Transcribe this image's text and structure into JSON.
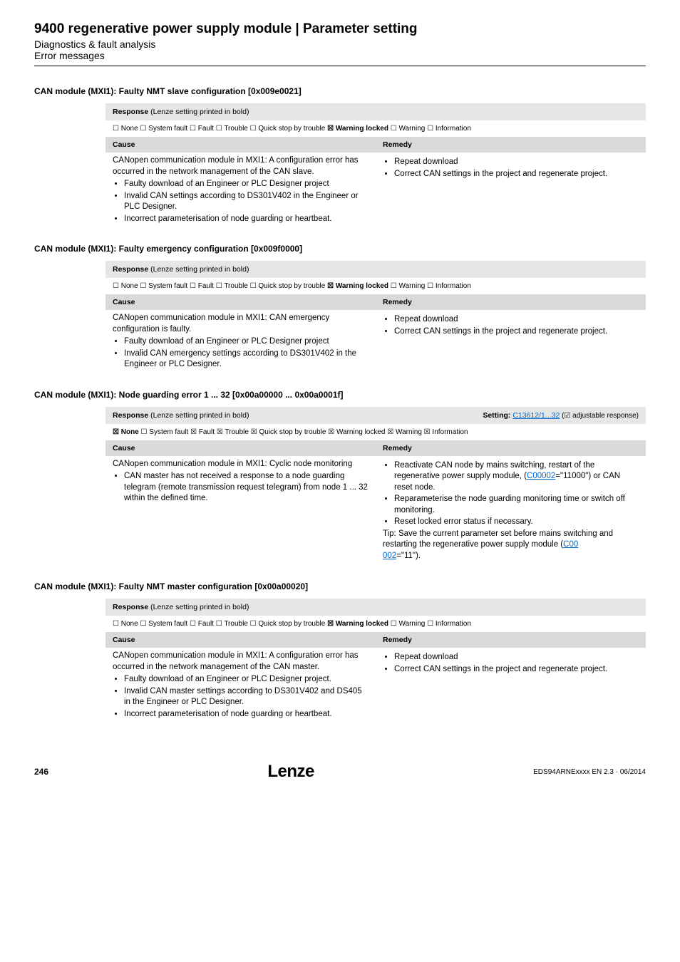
{
  "header": {
    "title": "9400 regenerative power supply module | Parameter setting",
    "subtitle1": "Diagnostics & fault analysis",
    "subtitle2": "Error messages"
  },
  "sections": [
    {
      "heading": "CAN module (MXI1): Faulty NMT slave configuration [0x009e0021]",
      "response_title": "Response",
      "response_note": " (Lenze setting printed in bold)",
      "setting_label": "",
      "setting_link": "",
      "adj_resp": "",
      "checks": {
        "none": {
          "label": "None",
          "checked": false,
          "bold": false
        },
        "system_fault": {
          "label": "System fault",
          "checked": false,
          "bold": false
        },
        "fault": {
          "label": "Fault",
          "checked": false,
          "bold": false
        },
        "trouble": {
          "label": "Trouble",
          "checked": false,
          "bold": false
        },
        "quick_stop": {
          "label": "Quick stop by trouble",
          "checked": false,
          "bold": false
        },
        "warning_locked": {
          "label": "Warning locked",
          "checked": true,
          "bold": true
        },
        "warning": {
          "label": "Warning",
          "checked": false,
          "bold": false
        },
        "information": {
          "label": "Information",
          "checked": false,
          "bold": false
        }
      },
      "cause_header": "Cause",
      "remedy_header": "Remedy",
      "cause_intro": "CANopen communication module in MXI1: A configuration error has occurred in the network management of the CAN slave.",
      "cause_bullets": [
        "Faulty download of an Engineer or PLC Designer project",
        "Invalid CAN settings according to DS301V402 in the Engineer or PLC Designer.",
        "Incorrect parameterisation of node guarding or heartbeat."
      ],
      "remedy_intro": "",
      "remedy_bullets": [
        "Repeat download",
        "Correct CAN settings in the project and regenerate project."
      ],
      "remedy_tip": ""
    },
    {
      "heading": "CAN module (MXI1): Faulty emergency configuration [0x009f0000]",
      "response_title": "Response",
      "response_note": " (Lenze setting printed in bold)",
      "setting_label": "",
      "setting_link": "",
      "adj_resp": "",
      "checks": {
        "none": {
          "label": "None",
          "checked": false,
          "bold": false
        },
        "system_fault": {
          "label": "System fault",
          "checked": false,
          "bold": false
        },
        "fault": {
          "label": "Fault",
          "checked": false,
          "bold": false
        },
        "trouble": {
          "label": "Trouble",
          "checked": false,
          "bold": false
        },
        "quick_stop": {
          "label": "Quick stop by trouble",
          "checked": false,
          "bold": false
        },
        "warning_locked": {
          "label": "Warning locked",
          "checked": true,
          "bold": true
        },
        "warning": {
          "label": "Warning",
          "checked": false,
          "bold": false
        },
        "information": {
          "label": "Information",
          "checked": false,
          "bold": false
        }
      },
      "cause_header": "Cause",
      "remedy_header": "Remedy",
      "cause_intro": "CANopen communication module in MXI1: CAN emergency configuration is faulty.",
      "cause_bullets": [
        "Faulty download of an Engineer or PLC Designer project",
        "Invalid CAN emergency settings according to DS301V402 in the Engineer or PLC Designer."
      ],
      "remedy_intro": "",
      "remedy_bullets": [
        "Repeat download",
        "Correct CAN settings in the project and regenerate project."
      ],
      "remedy_tip": ""
    },
    {
      "heading": "CAN module (MXI1): Node guarding error 1 ... 32 [0x00a00000 ... 0x00a0001f]",
      "response_title": "Response",
      "response_note": " (Lenze setting printed in bold)",
      "setting_label": "Setting: ",
      "setting_link": "C13612/1...32",
      "adj_resp": "   (☑ adjustable response)",
      "checks": {
        "none": {
          "label": "None",
          "checked": true,
          "bold": true
        },
        "system_fault": {
          "label": "System fault",
          "checked": false,
          "bold": false
        },
        "fault": {
          "label": "Fault",
          "checked": true,
          "bold": false
        },
        "trouble": {
          "label": "Trouble",
          "checked": true,
          "bold": false
        },
        "quick_stop": {
          "label": "Quick stop by trouble",
          "checked": true,
          "bold": false
        },
        "warning_locked": {
          "label": "Warning locked",
          "checked": true,
          "bold": false
        },
        "warning": {
          "label": "Warning",
          "checked": true,
          "bold": false
        },
        "information": {
          "label": "Information",
          "checked": true,
          "bold": false
        }
      },
      "cause_header": "Cause",
      "remedy_header": "Remedy",
      "cause_intro": "CANopen communication module in MXI1: Cyclic node monitoring",
      "cause_bullets": [
        "CAN master has not received a response to a node guarding telegram (remote transmission request telegram) from node 1 ... 32 within the defined time."
      ],
      "remedy_intro": "",
      "remedy_bullets": [
        "Reactivate CAN node by mains switching, restart of the regenerative power supply module, (<span class=\"link\">C00002</span>=\"11000\") or CAN reset node.",
        "Reparameterise the node guarding monitoring time or switch off monitoring.",
        "Reset locked error status if necessary."
      ],
      "remedy_tip": "Tip: Save the current parameter set before mains switching and restarting the regenerative power supply module (<span class=\"link\">C00<br>002</span>=\"11\")."
    },
    {
      "heading": "CAN module (MXI1): Faulty NMT master configuration [0x00a00020]",
      "response_title": "Response",
      "response_note": " (Lenze setting printed in bold)",
      "setting_label": "",
      "setting_link": "",
      "adj_resp": "",
      "checks": {
        "none": {
          "label": "None",
          "checked": false,
          "bold": false
        },
        "system_fault": {
          "label": "System fault",
          "checked": false,
          "bold": false
        },
        "fault": {
          "label": "Fault",
          "checked": false,
          "bold": false
        },
        "trouble": {
          "label": "Trouble",
          "checked": false,
          "bold": false
        },
        "quick_stop": {
          "label": "Quick stop by trouble",
          "checked": false,
          "bold": false
        },
        "warning_locked": {
          "label": "Warning locked",
          "checked": true,
          "bold": true
        },
        "warning": {
          "label": "Warning",
          "checked": false,
          "bold": false
        },
        "information": {
          "label": "Information",
          "checked": false,
          "bold": false
        }
      },
      "cause_header": "Cause",
      "remedy_header": "Remedy",
      "cause_intro": "CANopen communication module in MXI1: A configuration error has occurred in the network management of the CAN master.",
      "cause_bullets": [
        "Faulty download of an Engineer or PLC Designer project.",
        "Invalid CAN master settings according to DS301V402 and DS405 in the Engineer or PLC Designer.",
        "Incorrect parameterisation of node guarding or heartbeat."
      ],
      "remedy_intro": "",
      "remedy_bullets": [
        "Repeat download",
        "Correct CAN settings in the project and regenerate project."
      ],
      "remedy_tip": ""
    }
  ],
  "footer": {
    "page": "246",
    "logo": "Lenze",
    "docnum": "EDS94ARNExxxx EN 2.3 · 06/2014"
  },
  "symbols": {
    "checked": "☒",
    "unchecked": "☐",
    "check_adj": "☑"
  }
}
